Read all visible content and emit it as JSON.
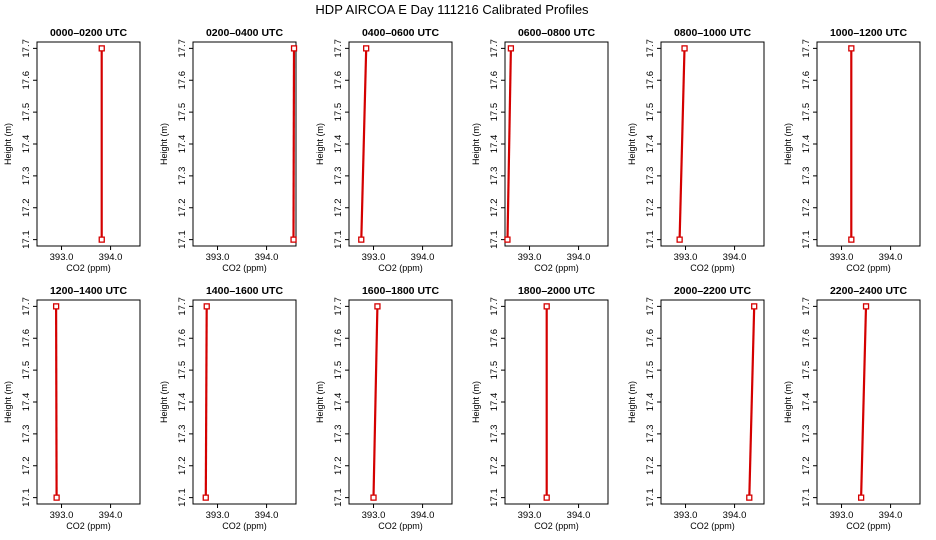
{
  "page": {
    "title": "HDP AIRCOA E  Day 111216  Calibrated Profiles"
  },
  "chart_data": [
    {
      "type": "line",
      "title": "0000–0200 UTC",
      "xlabel": "CO2 (ppm)",
      "ylabel": "Height (m)",
      "xlim": [
        392.5,
        394.6
      ],
      "ylim": [
        17.08,
        17.72
      ],
      "xticks": [
        "393.0",
        "394.0"
      ],
      "yticks": [
        "17.1",
        "17.2",
        "17.3",
        "17.4",
        "17.5",
        "17.6",
        "17.7"
      ],
      "color": "#d40000",
      "points": [
        {
          "x": 393.82,
          "y": 17.1
        },
        {
          "x": 393.82,
          "y": 17.7
        }
      ]
    },
    {
      "type": "line",
      "title": "0200–0400 UTC",
      "xlabel": "CO2 (ppm)",
      "ylabel": "Height (m)",
      "xlim": [
        392.5,
        394.6
      ],
      "ylim": [
        17.08,
        17.72
      ],
      "xticks": [
        "393.0",
        "394.0"
      ],
      "yticks": [
        "17.1",
        "17.2",
        "17.3",
        "17.4",
        "17.5",
        "17.6",
        "17.7"
      ],
      "color": "#d40000",
      "points": [
        {
          "x": 394.55,
          "y": 17.1
        },
        {
          "x": 394.56,
          "y": 17.7
        }
      ]
    },
    {
      "type": "line",
      "title": "0400–0600 UTC",
      "xlabel": "CO2 (ppm)",
      "ylabel": "Height (m)",
      "xlim": [
        392.5,
        394.6
      ],
      "ylim": [
        17.08,
        17.72
      ],
      "xticks": [
        "393.0",
        "394.0"
      ],
      "yticks": [
        "17.1",
        "17.2",
        "17.3",
        "17.4",
        "17.5",
        "17.6",
        "17.7"
      ],
      "color": "#d40000",
      "points": [
        {
          "x": 392.75,
          "y": 17.1
        },
        {
          "x": 392.85,
          "y": 17.7
        }
      ]
    },
    {
      "type": "line",
      "title": "0600–0800 UTC",
      "xlabel": "CO2 (ppm)",
      "ylabel": "Height (m)",
      "xlim": [
        392.5,
        394.6
      ],
      "ylim": [
        17.08,
        17.72
      ],
      "xticks": [
        "393.0",
        "394.0"
      ],
      "yticks": [
        "17.1",
        "17.2",
        "17.3",
        "17.4",
        "17.5",
        "17.6",
        "17.7"
      ],
      "color": "#d40000",
      "points": [
        {
          "x": 392.55,
          "y": 17.1
        },
        {
          "x": 392.62,
          "y": 17.7
        }
      ]
    },
    {
      "type": "line",
      "title": "0800–1000 UTC",
      "xlabel": "CO2 (ppm)",
      "ylabel": "Height (m)",
      "xlim": [
        392.5,
        394.6
      ],
      "ylim": [
        17.08,
        17.72
      ],
      "xticks": [
        "393.0",
        "394.0"
      ],
      "yticks": [
        "17.1",
        "17.2",
        "17.3",
        "17.4",
        "17.5",
        "17.6",
        "17.7"
      ],
      "color": "#d40000",
      "points": [
        {
          "x": 392.88,
          "y": 17.1
        },
        {
          "x": 392.98,
          "y": 17.7
        }
      ]
    },
    {
      "type": "line",
      "title": "1000–1200 UTC",
      "xlabel": "CO2 (ppm)",
      "ylabel": "Height (m)",
      "xlim": [
        392.5,
        394.6
      ],
      "ylim": [
        17.08,
        17.72
      ],
      "xticks": [
        "393.0",
        "394.0"
      ],
      "yticks": [
        "17.1",
        "17.2",
        "17.3",
        "17.4",
        "17.5",
        "17.6",
        "17.7"
      ],
      "color": "#d40000",
      "points": [
        {
          "x": 393.2,
          "y": 17.1
        },
        {
          "x": 393.2,
          "y": 17.7
        }
      ]
    },
    {
      "type": "line",
      "title": "1200–1400 UTC",
      "xlabel": "CO2 (ppm)",
      "ylabel": "Height (m)",
      "xlim": [
        392.5,
        394.6
      ],
      "ylim": [
        17.08,
        17.72
      ],
      "xticks": [
        "393.0",
        "394.0"
      ],
      "yticks": [
        "17.1",
        "17.2",
        "17.3",
        "17.4",
        "17.5",
        "17.6",
        "17.7"
      ],
      "color": "#d40000",
      "points": [
        {
          "x": 392.9,
          "y": 17.1
        },
        {
          "x": 392.89,
          "y": 17.7
        }
      ]
    },
    {
      "type": "line",
      "title": "1400–1600 UTC",
      "xlabel": "CO2 (ppm)",
      "ylabel": "Height (m)",
      "xlim": [
        392.5,
        394.6
      ],
      "ylim": [
        17.08,
        17.72
      ],
      "xticks": [
        "393.0",
        "394.0"
      ],
      "yticks": [
        "17.1",
        "17.2",
        "17.3",
        "17.4",
        "17.5",
        "17.6",
        "17.7"
      ],
      "color": "#d40000",
      "points": [
        {
          "x": 392.76,
          "y": 17.1
        },
        {
          "x": 392.78,
          "y": 17.7
        }
      ]
    },
    {
      "type": "line",
      "title": "1600–1800 UTC",
      "xlabel": "CO2 (ppm)",
      "ylabel": "Height (m)",
      "xlim": [
        392.5,
        394.6
      ],
      "ylim": [
        17.08,
        17.72
      ],
      "xticks": [
        "393.0",
        "394.0"
      ],
      "yticks": [
        "17.1",
        "17.2",
        "17.3",
        "17.4",
        "17.5",
        "17.6",
        "17.7"
      ],
      "color": "#d40000",
      "points": [
        {
          "x": 393.0,
          "y": 17.1
        },
        {
          "x": 393.08,
          "y": 17.7
        }
      ]
    },
    {
      "type": "line",
      "title": "1800–2000 UTC",
      "xlabel": "CO2 (ppm)",
      "ylabel": "Height (m)",
      "xlim": [
        392.5,
        394.6
      ],
      "ylim": [
        17.08,
        17.72
      ],
      "xticks": [
        "393.0",
        "394.0"
      ],
      "yticks": [
        "17.1",
        "17.2",
        "17.3",
        "17.4",
        "17.5",
        "17.6",
        "17.7"
      ],
      "color": "#d40000",
      "points": [
        {
          "x": 393.35,
          "y": 17.1
        },
        {
          "x": 393.35,
          "y": 17.7
        }
      ]
    },
    {
      "type": "line",
      "title": "2000–2200 UTC",
      "xlabel": "CO2 (ppm)",
      "ylabel": "Height (m)",
      "xlim": [
        392.5,
        394.6
      ],
      "ylim": [
        17.08,
        17.72
      ],
      "xticks": [
        "393.0",
        "394.0"
      ],
      "yticks": [
        "17.1",
        "17.2",
        "17.3",
        "17.4",
        "17.5",
        "17.6",
        "17.7"
      ],
      "color": "#d40000",
      "points": [
        {
          "x": 394.3,
          "y": 17.1
        },
        {
          "x": 394.4,
          "y": 17.7
        }
      ]
    },
    {
      "type": "line",
      "title": "2200–2400 UTC",
      "xlabel": "CO2 (ppm)",
      "ylabel": "Height (m)",
      "xlim": [
        392.5,
        394.6
      ],
      "ylim": [
        17.08,
        17.72
      ],
      "xticks": [
        "393.0",
        "394.0"
      ],
      "yticks": [
        "17.1",
        "17.2",
        "17.3",
        "17.4",
        "17.5",
        "17.6",
        "17.7"
      ],
      "color": "#d40000",
      "points": [
        {
          "x": 393.4,
          "y": 17.1
        },
        {
          "x": 393.5,
          "y": 17.7
        }
      ]
    }
  ]
}
